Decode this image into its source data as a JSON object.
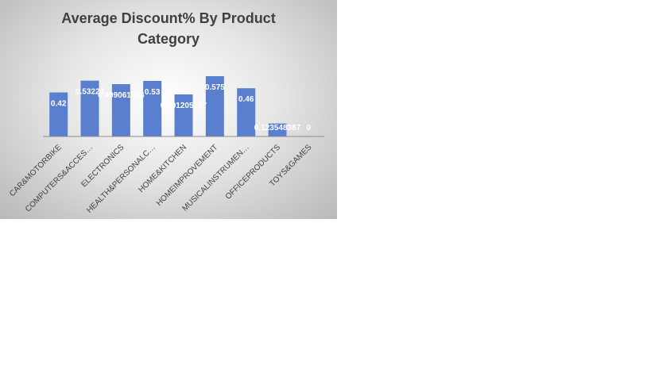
{
  "chart_data": {
    "type": "bar",
    "title": "Average Discount%  By Product Category",
    "categories": [
      "CAR&MOTORBIKE",
      "COMPUTERS&ACCES…",
      "ELECTRONICS",
      "HEALTH&PERSONALC…",
      "HOME&KITCHEN",
      "HOMEIMPROVEMENT",
      "MUSICALINSTRUMEN…",
      "OFFICEPRODUCTS",
      "TOYS&GAMES"
    ],
    "values": [
      0.42,
      0.53224,
      0.499061224,
      0.53,
      0.401205357,
      0.575,
      0.46,
      0.123548387,
      0
    ],
    "color": "#5b7fcf"
  }
}
